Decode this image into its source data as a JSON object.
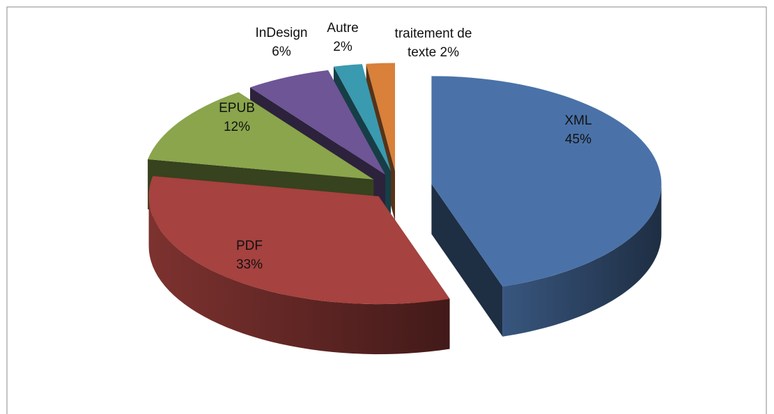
{
  "chart_data": {
    "type": "pie",
    "categories": [
      "XML",
      "PDF",
      "EPUB",
      "InDesign",
      "Autre",
      "traitement de texte"
    ],
    "values": [
      45,
      33,
      12,
      6,
      2,
      2
    ],
    "value_labels": [
      "45%",
      "33%",
      "12%",
      "6%",
      "2%",
      "2%"
    ],
    "colors": [
      "#4a72a8",
      "#a6423f",
      "#8aa54c",
      "#6e5596",
      "#3a9ab0",
      "#d9803a"
    ]
  }
}
